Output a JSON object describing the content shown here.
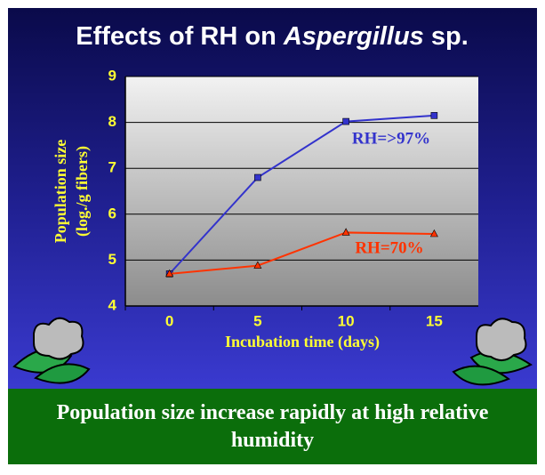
{
  "chart_data": {
    "type": "line",
    "title": [
      "Effects of RH on ",
      "Aspergillus",
      " sp."
    ],
    "ylabel": [
      "Population size",
      "(log./g fibers)"
    ],
    "xlabel": "Incubation time (days)",
    "categories": [
      "0",
      "5",
      "10",
      "15"
    ],
    "series": [
      {
        "name": "RH=>97%",
        "color": "#3333cc",
        "marker": "square",
        "values": [
          4.7,
          6.8,
          8.02,
          8.15
        ]
      },
      {
        "name": "RH=70%",
        "color": "#ff3300",
        "marker": "triangle",
        "values": [
          4.7,
          4.88,
          5.6,
          5.57
        ]
      }
    ],
    "ylim": [
      4,
      9
    ],
    "yticks": [
      4,
      5,
      6,
      7,
      8,
      9
    ],
    "grid": true
  },
  "caption": "Population size increase rapidly at high relative humidity"
}
